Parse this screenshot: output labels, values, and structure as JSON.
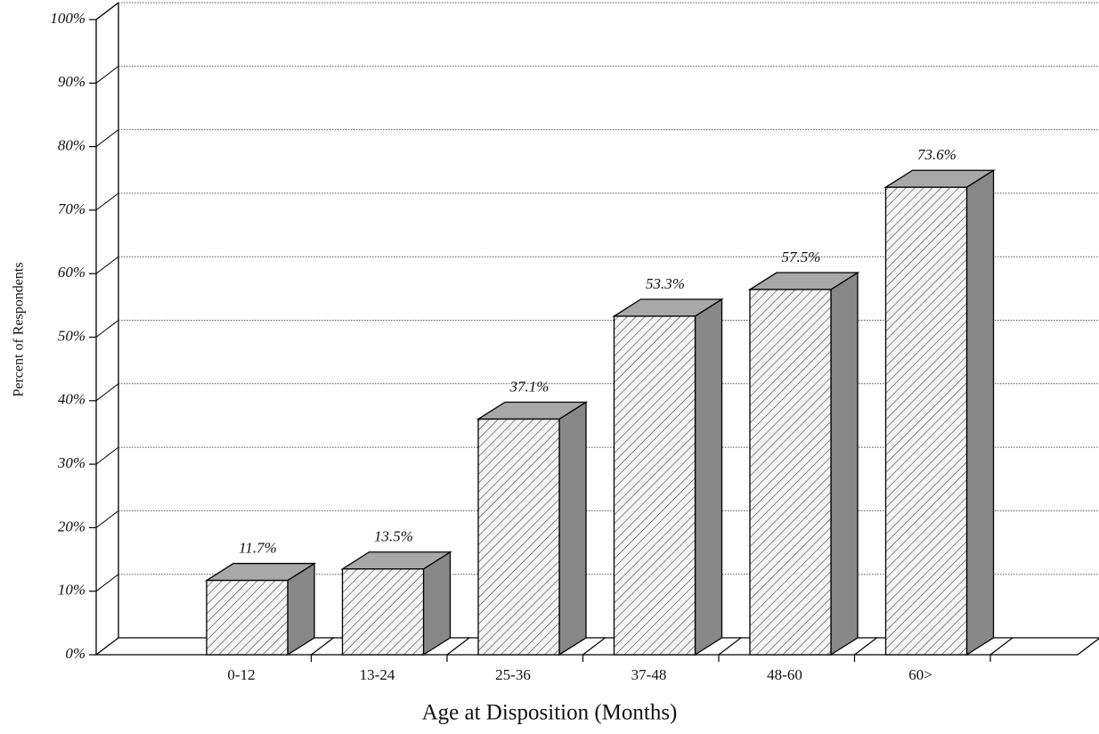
{
  "chart_data": {
    "type": "bar3d",
    "xlabel": "Age at Disposition (Months)",
    "ylabel": "Percent of Respondents",
    "categories": [
      "0-12",
      "13-24",
      "25-36",
      "37-48",
      "48-60",
      "60>"
    ],
    "values": [
      11.7,
      13.5,
      37.1,
      53.3,
      57.5,
      73.6
    ],
    "value_labels": [
      "11.7%",
      "13.5%",
      "37.1%",
      "53.3%",
      "57.5%",
      "73.6%"
    ],
    "color": "#f2f2f2",
    "ylim": [
      0,
      100
    ],
    "yticks": [
      {
        "value": 0,
        "label": "0%"
      },
      {
        "value": 10,
        "label": "10%"
      },
      {
        "value": 20,
        "label": "20%"
      },
      {
        "value": 30,
        "label": "30%"
      },
      {
        "value": 40,
        "label": "40%"
      },
      {
        "value": 50,
        "label": "50%"
      },
      {
        "value": 60,
        "label": "60%"
      },
      {
        "value": 70,
        "label": "70%"
      },
      {
        "value": 80,
        "label": "80%"
      },
      {
        "value": 90,
        "label": "90%"
      },
      {
        "value": 100,
        "label": "100%"
      }
    ],
    "grid": true
  }
}
